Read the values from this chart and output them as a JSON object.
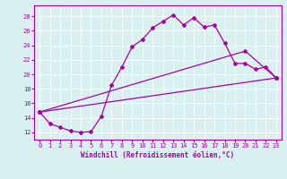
{
  "xlabel": "Windchill (Refroidissement éolien,°C)",
  "background_color": "#d8f0f0",
  "line_color": "#aa00aa",
  "xlim": [
    -0.5,
    23.5
  ],
  "ylim": [
    11.0,
    29.5
  ],
  "yticks": [
    12,
    14,
    16,
    18,
    20,
    22,
    24,
    26,
    28
  ],
  "xticks": [
    0,
    1,
    2,
    3,
    4,
    5,
    6,
    7,
    8,
    9,
    10,
    11,
    12,
    13,
    14,
    15,
    16,
    17,
    18,
    19,
    20,
    21,
    22,
    23
  ],
  "curve1_x": [
    0,
    1,
    2,
    3,
    4,
    5,
    6,
    7,
    8,
    9,
    10,
    11,
    12,
    13,
    14,
    15,
    16,
    17,
    18,
    19,
    20,
    21,
    22,
    23
  ],
  "curve1_y": [
    14.8,
    13.2,
    12.7,
    12.2,
    12.0,
    12.1,
    14.2,
    18.5,
    21.0,
    23.8,
    24.8,
    26.4,
    27.3,
    28.2,
    26.8,
    27.8,
    26.5,
    26.8,
    24.3,
    21.5,
    21.5,
    20.7,
    21.0,
    19.5
  ],
  "curve2_x": [
    0,
    20,
    23
  ],
  "curve2_y": [
    14.8,
    23.2,
    19.5
  ],
  "curve3_x": [
    0,
    23
  ],
  "curve3_y": [
    14.8,
    19.5
  ],
  "grid_color": "#ffffff",
  "tick_fontsize": 5,
  "xlabel_fontsize": 5.5
}
